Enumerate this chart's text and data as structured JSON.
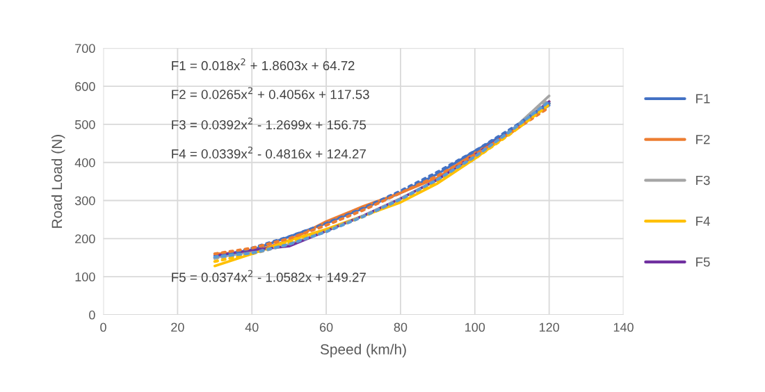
{
  "chart_data": {
    "type": "line",
    "xlabel": "Speed (km/h)",
    "ylabel": "Road Load (N)",
    "xlim": [
      0,
      140
    ],
    "xticks": [
      0,
      20,
      40,
      60,
      80,
      100,
      120,
      140
    ],
    "ylim": [
      0,
      700
    ],
    "yticks": [
      0,
      100,
      200,
      300,
      400,
      500,
      600,
      700
    ],
    "grid": true,
    "legend": "right",
    "line_style": "solid",
    "x": [
      30,
      40,
      50,
      60,
      70,
      80,
      90,
      100,
      110,
      120
    ],
    "series": [
      {
        "name": "F1",
        "color": "#4472c4",
        "values": [
          155,
          170,
          205,
          240,
          280,
          320,
          370,
          430,
          485,
          550
        ]
      },
      {
        "name": "F2",
        "color": "#ed7d31",
        "values": [
          160,
          165,
          195,
          245,
          285,
          320,
          360,
          425,
          480,
          560
        ]
      },
      {
        "name": "F3",
        "color": "#a5a5a5",
        "values": [
          150,
          165,
          185,
          220,
          260,
          305,
          355,
          415,
          485,
          575
        ]
      },
      {
        "name": "F4",
        "color": "#ffc000",
        "values": [
          128,
          160,
          195,
          225,
          260,
          295,
          345,
          410,
          480,
          555
        ]
      },
      {
        "name": "F5",
        "color": "#7030a0",
        "values": [
          155,
          170,
          180,
          220,
          260,
          305,
          355,
          420,
          485,
          560
        ]
      },
      {
        "color": "#4472c4",
        "line_style": "dotted",
        "values": [
          150,
          175,
          205,
          240,
          280,
          325,
          375,
          430,
          490,
          555
        ]
      },
      {
        "color": "#ed7d31",
        "line_style": "dotted",
        "values": [
          160,
          175,
          200,
          235,
          275,
          320,
          365,
          420,
          480,
          545
        ]
      },
      {
        "color": "#a5a5a5",
        "line_style": "dotted",
        "values": [
          148,
          160,
          185,
          220,
          260,
          305,
          355,
          415,
          485,
          565
        ]
      },
      {
        "color": "#ffc000",
        "line_style": "dotted",
        "values": [
          140,
          160,
          190,
          220,
          258,
          300,
          350,
          410,
          478,
          552
        ]
      },
      {
        "color": "#5b9bd5",
        "line_style": "dotted",
        "values": [
          152,
          162,
          185,
          218,
          258,
          303,
          355,
          415,
          485,
          560
        ]
      }
    ],
    "annotations": [
      "F1 = 0.018x$^{2}$ + 1.8603x + 64.72",
      "F2 = 0.0265x$^{2}$ + 0.4056x + 117.53",
      "F3 = 0.0392x$^{2}$ - 1.2699x + 156.75",
      "F4 = 0.0339x$^{2}$ - 0.4816x + 124.27",
      "F5 = 0.0374x$^{2}$ - 1.0582x + 149.27"
    ]
  }
}
